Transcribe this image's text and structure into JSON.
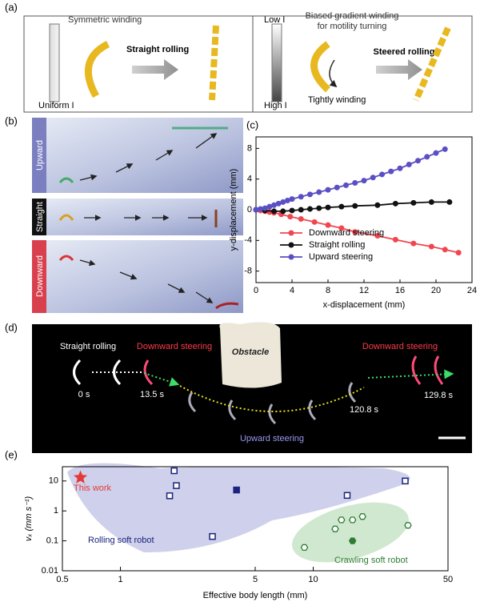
{
  "panels": {
    "a": {
      "label": "(a)",
      "left_title": "Symmetric winding",
      "left_gradient": "Uniform I",
      "left_action": "Straight rolling",
      "low": "Low I",
      "high": "High I",
      "right_title_1": "Biased gradient winding",
      "right_title_2": "for motility turning",
      "right_action": "Steered rolling",
      "right_note": "Tightly winding"
    },
    "b": {
      "label": "(b)",
      "rows": [
        "Upward",
        "Straight",
        "Downward"
      ]
    },
    "d": {
      "label": "(d)",
      "straight": "Straight rolling",
      "down_1": "Downward steering",
      "obstacle": "Obstacle",
      "t0": "0 s",
      "t1": "13.5 s",
      "up": "Upward steering",
      "t2": "120.8 s",
      "down_2": "Downward steering",
      "t3": "129.8 s"
    }
  },
  "chart_data": [
    {
      "type": "line",
      "panel_label": "(c)",
      "x_label": "x-displacement (mm)",
      "y_label": "y-displacement (mm)",
      "xlim": [
        0,
        24
      ],
      "xticks": [
        0,
        4,
        8,
        12,
        16,
        20,
        24
      ],
      "ylim": [
        -9.5,
        9.5
      ],
      "yticks": [
        -8,
        -4,
        0,
        4,
        8
      ],
      "legend": "lower right",
      "series": [
        {
          "name": "Downward steering",
          "color": "#f0464f",
          "x": [
            0,
            0.5,
            1,
            1.5,
            2,
            2.8,
            3.8,
            5,
            6.5,
            8,
            9.5,
            11,
            13.5,
            15.5,
            17.5,
            19.5,
            21,
            22.5
          ],
          "values": [
            0,
            -0.1,
            -0.2,
            -0.3,
            -0.4,
            -0.6,
            -0.9,
            -1.2,
            -1.6,
            -2,
            -2.4,
            -2.9,
            -3.4,
            -3.9,
            -4.4,
            -4.8,
            -5.2,
            -5.6
          ]
        },
        {
          "name": "Straight rolling",
          "color": "#111111",
          "x": [
            0,
            1,
            2,
            3,
            4,
            5,
            6,
            7,
            8,
            9.5,
            11,
            13.5,
            15.5,
            17.5,
            19.5,
            21.5
          ],
          "values": [
            0,
            -0.1,
            -0.2,
            -0.2,
            -0.1,
            0,
            0.1,
            0.2,
            0.3,
            0.4,
            0.5,
            0.6,
            0.8,
            0.9,
            1,
            1
          ]
        },
        {
          "name": "Upward steering",
          "color": "#5a4fc4",
          "x": [
            0,
            0.5,
            1,
            1.5,
            2,
            2.5,
            3,
            3.5,
            4,
            5,
            6,
            7,
            8,
            9,
            10,
            11,
            12,
            13,
            14,
            15,
            16,
            17,
            18,
            19,
            20,
            21
          ],
          "values": [
            0,
            0.1,
            0.2,
            0.4,
            0.6,
            0.8,
            1,
            1.2,
            1.4,
            1.7,
            2,
            2.3,
            2.6,
            2.9,
            3.2,
            3.5,
            3.8,
            4.2,
            4.6,
            5,
            5.4,
            5.9,
            6.4,
            6.9,
            7.4,
            7.9
          ]
        }
      ]
    },
    {
      "type": "scatter",
      "panel_label": "(e)",
      "x_label": "Effective body length (mm)",
      "y_label": "vₓ (mm s⁻¹)",
      "log_x": true,
      "log_y": true,
      "xlim": [
        0.5,
        50
      ],
      "xticks": [
        0.5,
        1,
        5,
        10,
        50
      ],
      "ylim": [
        0.01,
        30
      ],
      "yticks": [
        0.01,
        0.1,
        1,
        10
      ],
      "annotations": [
        "This work",
        "Rolling soft robot",
        "Crawling soft robot"
      ],
      "series": [
        {
          "marker": "star",
          "color": "#e53935",
          "x": [
            0.62
          ],
          "values": [
            13
          ]
        },
        {
          "marker": "square-open",
          "color": "#1a237e",
          "x": [
            1.8,
            1.9,
            1.95,
            3,
            15,
            30
          ],
          "values": [
            3.2,
            22,
            7,
            0.14,
            3.3,
            10
          ]
        },
        {
          "marker": "square-filled",
          "color": "#1a237e",
          "x": [
            4
          ],
          "values": [
            5
          ]
        },
        {
          "marker": "hexagon-open",
          "color": "#2e7d32",
          "x": [
            9,
            13,
            14,
            16,
            18,
            31
          ],
          "values": [
            0.06,
            0.25,
            0.5,
            0.5,
            0.65,
            0.33
          ]
        },
        {
          "marker": "hexagon-filled",
          "color": "#2e7d32",
          "x": [
            16
          ],
          "values": [
            0.1
          ]
        }
      ]
    }
  ]
}
